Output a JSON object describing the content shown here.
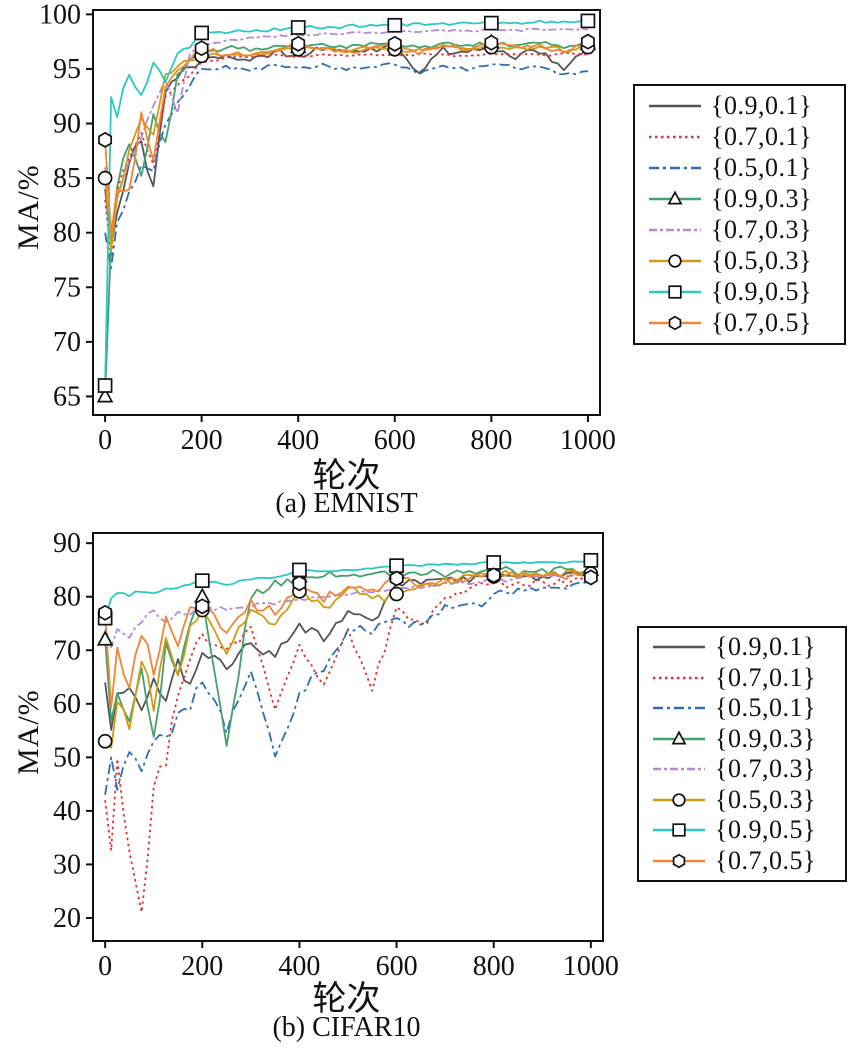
{
  "charts": [
    {
      "subtitle": "(a) EMNIST",
      "xlabel": "轮次",
      "ylabel": "MA/%",
      "x_ticks": [
        0,
        200,
        400,
        600,
        800,
        1000
      ],
      "y_ticks": [
        65,
        70,
        75,
        80,
        85,
        90,
        95,
        100
      ]
    },
    {
      "subtitle": "(b) CIFAR10",
      "xlabel": "轮次",
      "ylabel": "MA/%",
      "x_ticks": [
        0,
        200,
        400,
        600,
        800,
        1000
      ],
      "y_ticks": [
        20,
        30,
        40,
        50,
        60,
        70,
        80,
        90
      ]
    }
  ],
  "legend": {
    "entries": [
      {
        "label": "{0.9,0.1}",
        "color": "#555555",
        "line_style": "solid",
        "marker": "none"
      },
      {
        "label": "{0.7,0.1}",
        "color": "#e0312e",
        "line_style": "dotted",
        "marker": "none"
      },
      {
        "label": "{0.5,0.1}",
        "color": "#2e6db4",
        "line_style": "dashdot",
        "marker": "none"
      },
      {
        "label": "{0.9,0.3}",
        "color": "#44a06d",
        "line_style": "solid",
        "marker": "triangle"
      },
      {
        "label": "{0.7,0.3}",
        "color": "#b589d8",
        "line_style": "dashed",
        "marker": "none"
      },
      {
        "label": "{0.5,0.3}",
        "color": "#cf9c17",
        "line_style": "solid",
        "marker": "circle"
      },
      {
        "label": "{0.9,0.5}",
        "color": "#2cc8c4",
        "line_style": "solid",
        "marker": "square"
      },
      {
        "label": "{0.7,0.5}",
        "color": "#ef8636",
        "line_style": "solid",
        "marker": "hexagon"
      }
    ]
  },
  "chart_data": [
    {
      "type": "line",
      "title": "(a) EMNIST",
      "xlabel": "轮次",
      "ylabel": "MA/%",
      "xlim": [
        -25,
        1025
      ],
      "ylim": [
        63.3,
        100.4
      ],
      "x_ticks": [
        0,
        200,
        400,
        600,
        800,
        1000
      ],
      "y_ticks": [
        65,
        70,
        75,
        80,
        85,
        90,
        95,
        100
      ],
      "grid": false,
      "legend_position": "right-outside",
      "marker_x": [
        0,
        200,
        400,
        600,
        800,
        1000
      ],
      "x": [
        0,
        10,
        25,
        50,
        75,
        100,
        125,
        150,
        175,
        200,
        250,
        300,
        350,
        400,
        450,
        500,
        550,
        600,
        650,
        700,
        750,
        800,
        850,
        900,
        950,
        1000
      ],
      "series": [
        {
          "name": "{0.9,0.1}",
          "noise": 0.55,
          "values": [
            84,
            78,
            83,
            87,
            88,
            84.3,
            93,
            94.5,
            95.5,
            95.8,
            96.3,
            96.0,
            96.5,
            96.2,
            96.8,
            96.4,
            96.9,
            97.0,
            94.7,
            96.8,
            96.3,
            97.2,
            96.1,
            96.7,
            94.9,
            97.0
          ]
        },
        {
          "name": "{0.7,0.1}",
          "noise": 0.2,
          "values": [
            83,
            77,
            84,
            87,
            89,
            86,
            92.5,
            93.5,
            94.5,
            95.6,
            96.0,
            96.1,
            96.2,
            96.1,
            96.3,
            96.2,
            96.3,
            96.2,
            96.4,
            96.3,
            96.2,
            96.4,
            96.3,
            96.2,
            96.4,
            96.3
          ]
        },
        {
          "name": "{0.5,0.1}",
          "noise": 0.3,
          "values": [
            80,
            75,
            81,
            84,
            86,
            85.7,
            90,
            92,
            93.5,
            95.0,
            95.2,
            95.0,
            95.3,
            95.1,
            95.3,
            95.0,
            95.2,
            95.4,
            94.6,
            95.2,
            95.0,
            95.4,
            95.1,
            95.2,
            94.5,
            94.8
          ]
        },
        {
          "name": "{0.9,0.3}",
          "noise": 0.4,
          "values": [
            65,
            78,
            84,
            88,
            85,
            91,
            88,
            94.5,
            95.8,
            96.6,
            96.9,
            96.7,
            97.1,
            97.0,
            97.2,
            97.0,
            97.3,
            97.2,
            96.9,
            97.3,
            97.1,
            97.4,
            97.2,
            97.4,
            97.1,
            97.3
          ]
        },
        {
          "name": "{0.7,0.3}",
          "noise": 0.2,
          "values": [
            86,
            79,
            83,
            86.5,
            89,
            91.5,
            94,
            91,
            96.3,
            97.2,
            97.6,
            97.8,
            98.0,
            98.1,
            98.2,
            98.3,
            98.3,
            98.4,
            98.4,
            98.5,
            98.5,
            98.6,
            98.6,
            98.6,
            98.6,
            98.6
          ]
        },
        {
          "name": "{0.5,0.3}",
          "noise": 0.4,
          "values": [
            85,
            77,
            83,
            87.5,
            90.5,
            89,
            94.5,
            95.2,
            95.8,
            96.2,
            96.5,
            96.3,
            96.7,
            96.8,
            96.9,
            96.7,
            97.0,
            96.8,
            96.6,
            97.1,
            96.9,
            97.0,
            96.8,
            97.1,
            96.7,
            97.0
          ]
        },
        {
          "name": "{0.9,0.5}",
          "noise": 0.25,
          "values": [
            66,
            93,
            91,
            94.5,
            92.5,
            95.5,
            94,
            96.3,
            97,
            98.3,
            98.4,
            98.5,
            98.6,
            98.8,
            98.8,
            98.9,
            99.0,
            99.0,
            99.1,
            99.1,
            99.2,
            99.2,
            99.2,
            99.3,
            99.3,
            99.4
          ]
        },
        {
          "name": "{0.7,0.5}",
          "noise": 0.45,
          "values": [
            88.5,
            79,
            84,
            84,
            91,
            87,
            93.5,
            94.8,
            95.8,
            96.9,
            96.4,
            96.2,
            96.6,
            97.3,
            96.8,
            96.6,
            96.9,
            97.3,
            96.6,
            97.0,
            96.8,
            97.4,
            97.1,
            97.0,
            96.5,
            97.5
          ]
        }
      ]
    },
    {
      "type": "line",
      "title": "(b) CIFAR10",
      "xlabel": "轮次",
      "ylabel": "MA/%",
      "xlim": [
        -25,
        1025
      ],
      "ylim": [
        15.7,
        91.9
      ],
      "x_ticks": [
        0,
        200,
        400,
        600,
        800,
        1000
      ],
      "y_ticks": [
        20,
        30,
        40,
        50,
        60,
        70,
        80,
        90
      ],
      "grid": false,
      "legend_position": "right-outside",
      "marker_x": [
        0,
        200,
        400,
        600,
        800,
        1000
      ],
      "x": [
        0,
        10,
        25,
        50,
        75,
        100,
        125,
        150,
        175,
        200,
        250,
        300,
        350,
        400,
        450,
        500,
        550,
        600,
        650,
        700,
        750,
        800,
        850,
        900,
        950,
        1000
      ],
      "series": [
        {
          "name": "{0.9,0.1}",
          "noise": 1.5,
          "values": [
            64,
            56,
            61,
            63,
            58,
            65,
            61,
            67,
            64,
            69.5,
            67,
            71.5,
            69,
            75,
            72,
            77,
            75,
            82.5,
            83,
            83.5,
            83,
            84,
            84,
            83.8,
            84,
            84.2
          ]
        },
        {
          "name": "{0.7,0.1}",
          "noise": 2.2,
          "values": [
            42,
            33,
            48,
            32,
            21,
            44,
            50,
            62,
            68,
            73,
            70,
            74,
            58,
            71,
            64,
            74,
            63,
            78,
            74.5,
            80,
            82,
            82.5,
            82.3,
            83,
            82.5,
            83
          ]
        },
        {
          "name": "{0.5,0.1}",
          "noise": 2.0,
          "values": [
            43,
            50,
            45,
            52,
            47,
            55,
            53,
            58,
            60,
            64,
            56,
            66,
            50,
            62,
            66,
            74,
            73,
            76,
            74,
            79,
            78,
            80.5,
            81,
            82,
            81.5,
            83
          ]
        },
        {
          "name": "{0.9,0.3}",
          "noise": 1.6,
          "values": [
            72,
            55,
            62,
            57,
            66,
            54,
            70,
            65,
            75,
            80,
            52,
            80,
            82,
            83.8,
            83.5,
            84,
            84,
            84.5,
            84.3,
            84.5,
            84.5,
            84.8,
            84.6,
            84.8,
            84.9,
            85
          ]
        },
        {
          "name": "{0.7,0.3}",
          "noise": 0.7,
          "values": [
            74,
            71,
            73.5,
            73,
            75.5,
            77.5,
            75.5,
            77,
            76.5,
            78,
            77.5,
            78.5,
            79,
            79.5,
            80,
            80.5,
            81,
            81.5,
            82,
            82.3,
            82.7,
            83,
            83.4,
            83.8,
            84.1,
            84.5
          ]
        },
        {
          "name": "{0.5,0.3}",
          "noise": 1.7,
          "values": [
            53,
            50,
            62,
            55,
            68,
            60,
            72,
            65,
            74,
            77.5,
            70,
            78,
            75,
            81,
            78,
            81.5,
            79.5,
            80.5,
            82,
            83,
            84,
            83.8,
            84.3,
            84.2,
            84.8,
            84.3
          ]
        },
        {
          "name": "{0.9,0.5}",
          "noise": 0.35,
          "values": [
            76,
            79.5,
            81,
            80.5,
            81,
            80.5,
            81.2,
            81.5,
            82.2,
            83,
            82.5,
            83.2,
            83.5,
            85,
            84.6,
            85,
            85.3,
            85.8,
            85.9,
            86,
            86.2,
            86.4,
            86.3,
            86.5,
            86.4,
            86.8
          ]
        },
        {
          "name": "{0.7,0.5}",
          "noise": 1.5,
          "values": [
            77,
            57,
            70,
            62,
            74,
            66,
            76,
            70,
            77,
            78.2,
            73,
            79,
            77,
            82.5,
            79.5,
            82,
            81,
            83.4,
            82,
            83.2,
            83.5,
            84,
            84.1,
            84.2,
            84,
            83.6
          ]
        }
      ]
    }
  ]
}
